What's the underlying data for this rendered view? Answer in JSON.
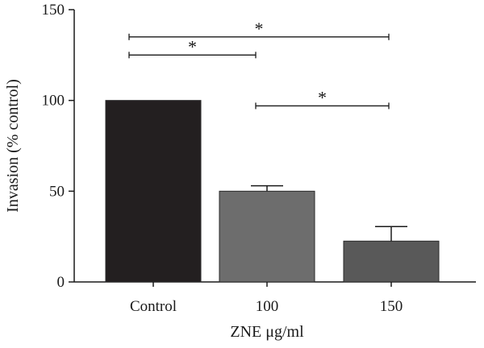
{
  "chart_data": {
    "type": "bar",
    "title": "",
    "xlabel": "ZNE μg/ml",
    "ylabel": "Invasion (% control)",
    "categories": [
      "Control",
      "100",
      "150"
    ],
    "values": [
      100,
      50,
      22.5
    ],
    "error": [
      0,
      3,
      8
    ],
    "ylim": [
      0,
      150
    ],
    "yticks": [
      "0",
      "50",
      "100",
      "150"
    ],
    "colors": [
      "#231f20",
      "#6d6d6d",
      "#595959"
    ],
    "grid": false,
    "legend": "none",
    "significance": [
      {
        "from": 0,
        "to": 1,
        "label": "*"
      },
      {
        "from": 0,
        "to": 2,
        "label": "*"
      },
      {
        "from": 1,
        "to": 2,
        "label": "*"
      }
    ]
  }
}
